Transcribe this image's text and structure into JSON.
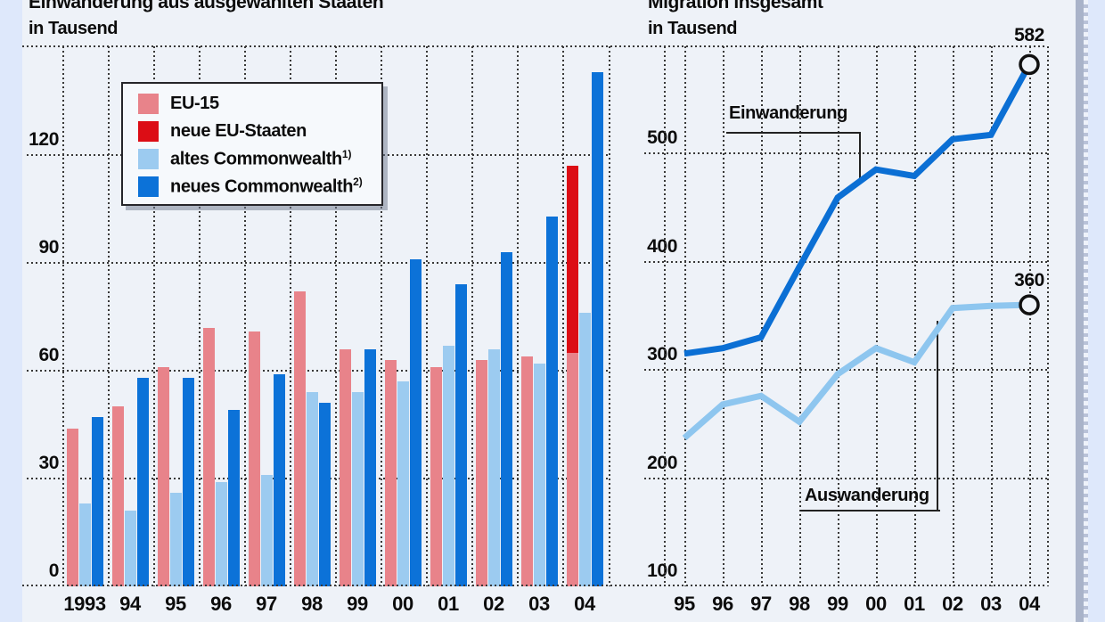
{
  "page": {
    "background": "#dee8fb",
    "panel_background": "#eef2f8",
    "divider_color": "#a9b3c9",
    "grid_color": "#383838"
  },
  "chart_data": [
    {
      "type": "bar",
      "title": "Einwanderung aus ausgewählten Staaten",
      "subtitle": "in Tausend",
      "unit": "Tausend",
      "categories": [
        "1993",
        "94",
        "95",
        "96",
        "97",
        "98",
        "99",
        "00",
        "01",
        "02",
        "03",
        "04"
      ],
      "ylim": [
        0,
        150
      ],
      "yticks": [
        0,
        30,
        60,
        90,
        120
      ],
      "grid": true,
      "legend_position": "top-left-inset",
      "series": [
        {
          "name": "EU-15",
          "footnote": "",
          "color": "#e8838a",
          "values": [
            44,
            50,
            61,
            72,
            71,
            82,
            66,
            63,
            61,
            63,
            64,
            65
          ]
        },
        {
          "name": "neue EU-Staaten",
          "footnote": "",
          "color": "#dc0d15",
          "stacked_on": "EU-15",
          "values": [
            0,
            0,
            0,
            0,
            0,
            0,
            0,
            0,
            0,
            0,
            0,
            52
          ]
        },
        {
          "name": "altes Commonwealth",
          "footnote": "1)",
          "color": "#9ccbf0",
          "values": [
            23,
            21,
            26,
            29,
            31,
            54,
            54,
            57,
            67,
            66,
            62,
            76
          ]
        },
        {
          "name": "neues Commonwealth",
          "footnote": "2)",
          "color": "#0c72d8",
          "values": [
            47,
            58,
            58,
            49,
            59,
            51,
            66,
            91,
            84,
            93,
            103,
            143
          ]
        }
      ]
    },
    {
      "type": "line",
      "title": "Migration insgesamt",
      "subtitle": "in Tausend",
      "x": [
        "95",
        "96",
        "97",
        "98",
        "99",
        "00",
        "01",
        "02",
        "03",
        "04"
      ],
      "ylim": [
        100,
        600
      ],
      "yticks": [
        100,
        200,
        300,
        400,
        500
      ],
      "grid": true,
      "series": [
        {
          "name": "Einwanderung",
          "color": "#0b6fd4",
          "end_label": "582",
          "values": [
            315,
            320,
            330,
            395,
            459,
            485,
            479,
            513,
            517,
            582
          ]
        },
        {
          "name": "Auswanderung",
          "color": "#8ec6ef",
          "end_label": "360",
          "values": [
            237,
            268,
            276,
            252,
            296,
            320,
            307,
            357,
            359,
            360
          ]
        }
      ]
    }
  ]
}
